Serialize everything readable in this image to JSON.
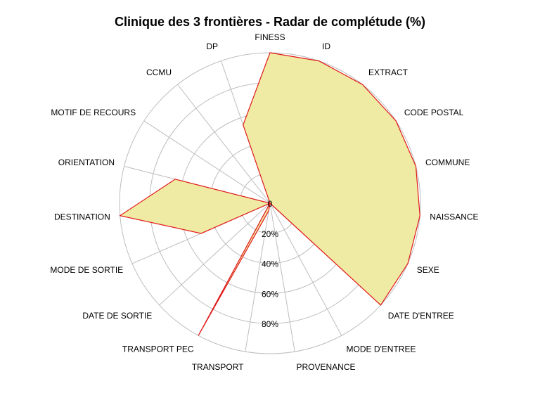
{
  "chart_data": {
    "type": "radar",
    "title": "Clinique des 3 frontières - Radar de complétude (%)",
    "categories": [
      "FINESS",
      "ID",
      "EXTRACT",
      "CODE POSTAL",
      "COMMUNE",
      "NAISSANCE",
      "SEXE",
      "DATE D'ENTREE",
      "MODE D'ENTREE",
      "PROVENANCE",
      "TRANSPORT",
      "TRANSPORT PEC",
      "DATE DE SORTIE",
      "MODE DE SORTIE",
      "DESTINATION",
      "ORIENTATION",
      "MOTIF DE RECOURS",
      "CCMU",
      "DP"
    ],
    "values": [
      100,
      100,
      100,
      100,
      100,
      100,
      100,
      100,
      0,
      0,
      5,
      100,
      0,
      50,
      100,
      65,
      0,
      0,
      55
    ],
    "ylim": [
      0,
      100
    ],
    "tick_labels": [
      "0",
      "20%",
      "40%",
      "60%",
      "80%"
    ],
    "grid": true,
    "colors": {
      "fill": "#f0eba4",
      "stroke": "#e01818",
      "grid": "#bdbdbd"
    }
  }
}
